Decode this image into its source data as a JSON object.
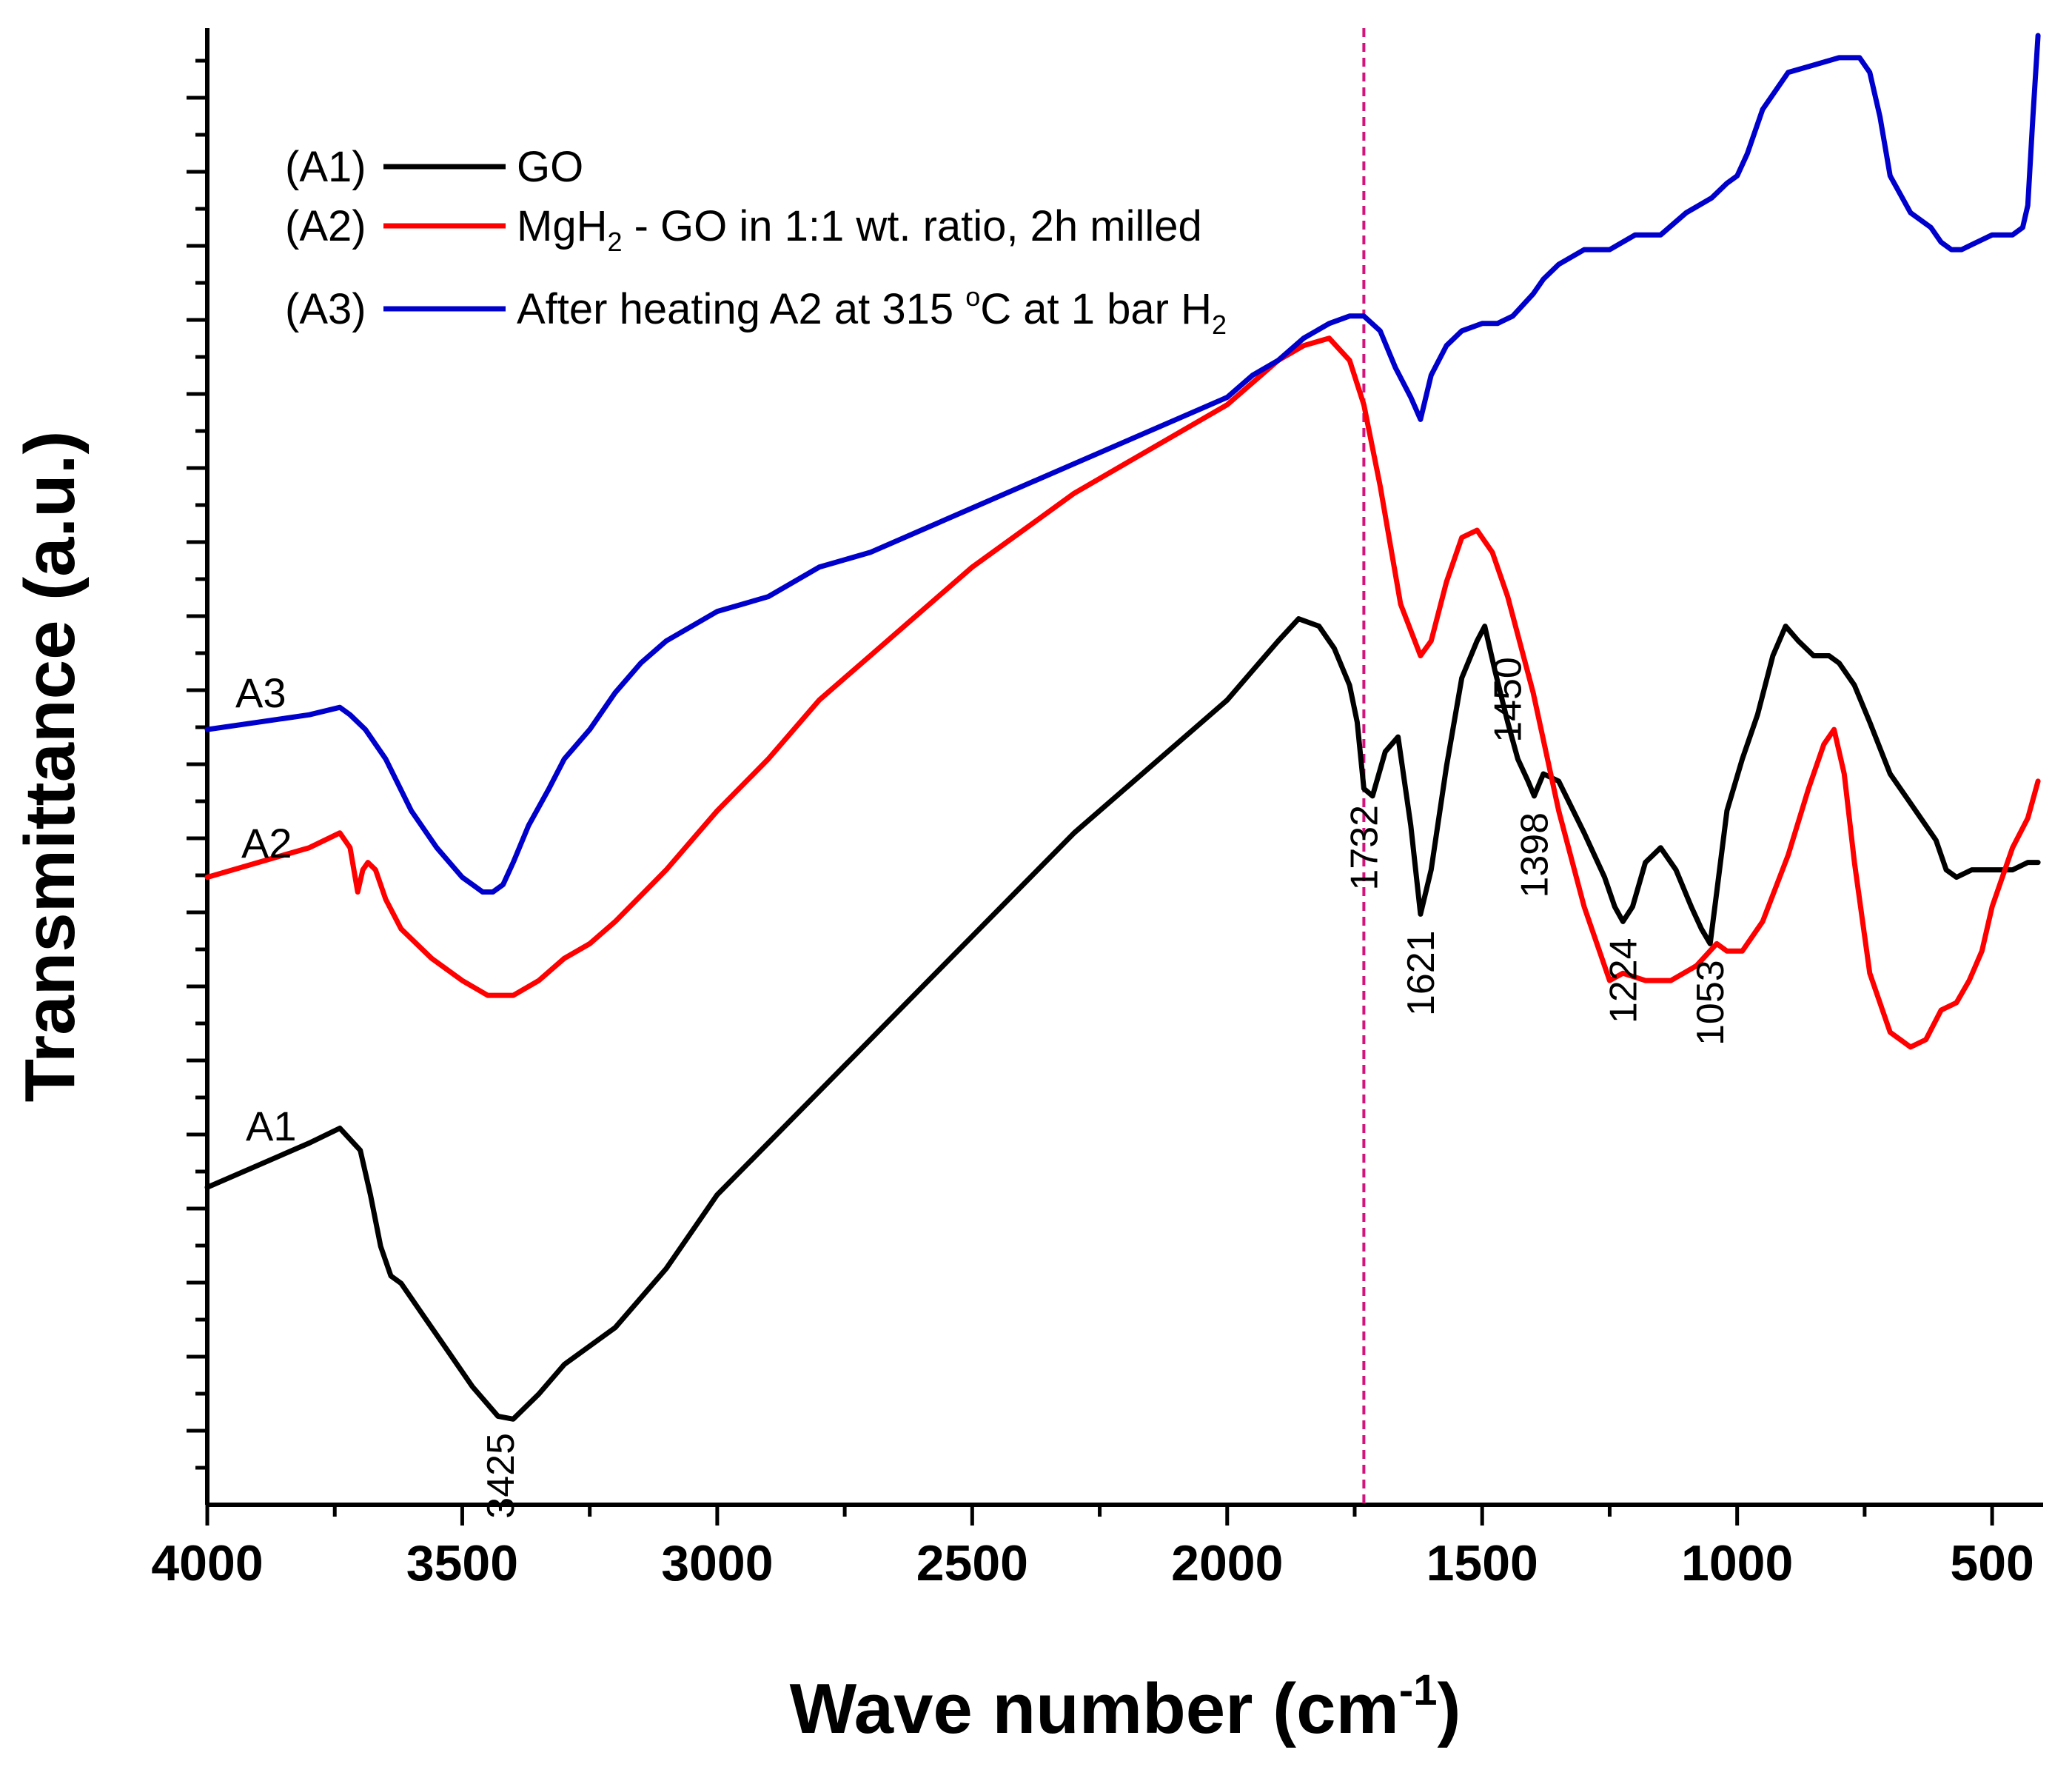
{
  "chart_data": {
    "type": "line",
    "title": "",
    "xlabel": "Wave number (cm",
    "xlabel_sup": "-1",
    "xlabel_end": ")",
    "ylabel": "Transmittance (a.u.)",
    "xlim": [
      4000,
      400
    ],
    "ylim": [
      0,
      10
    ],
    "x_ticks": [
      4000,
      3500,
      3000,
      2500,
      2000,
      1500,
      1000,
      500
    ],
    "y_ticks_hidden": true,
    "reference_line_x": 1732,
    "colors": {
      "A1": "#000000",
      "A2": "#ff0000",
      "A3": "#0000cc",
      "reference": "#d4147c"
    },
    "legend": [
      {
        "tag": "(A1)",
        "text": "GO"
      },
      {
        "tag": "(A2)",
        "text_parts": [
          "MgH",
          "2",
          " - GO in 1:1 wt. ratio, 2h milled"
        ]
      },
      {
        "tag": "(A3)",
        "text_parts": [
          "After heating A2 at 315 ",
          "o",
          "C at 1 bar H",
          "2"
        ]
      }
    ],
    "series": [
      {
        "name": "A1",
        "label": "A1",
        "x": [
          4000,
          3900,
          3800,
          3740,
          3700,
          3680,
          3660,
          3640,
          3620,
          3580,
          3530,
          3480,
          3430,
          3400,
          3350,
          3300,
          3200,
          3100,
          3000,
          2900,
          2800,
          2700,
          2600,
          2500,
          2400,
          2300,
          2200,
          2100,
          2000,
          1950,
          1900,
          1860,
          1820,
          1790,
          1760,
          1745,
          1732,
          1715,
          1690,
          1665,
          1640,
          1621,
          1600,
          1570,
          1540,
          1510,
          1495,
          1475,
          1450,
          1430,
          1410,
          1398,
          1380,
          1350,
          1300,
          1260,
          1240,
          1224,
          1205,
          1180,
          1150,
          1120,
          1090,
          1070,
          1053,
          1040,
          1020,
          990,
          960,
          930,
          905,
          880,
          850,
          820,
          800,
          770,
          740,
          700,
          660,
          630,
          610,
          590,
          570,
          540,
          500,
          460,
          430,
          410
        ],
        "y": [
          2.15,
          2.3,
          2.45,
          2.55,
          2.4,
          2.1,
          1.75,
          1.55,
          1.5,
          1.3,
          1.05,
          0.8,
          0.6,
          0.58,
          0.75,
          0.95,
          1.2,
          1.6,
          2.1,
          2.45,
          2.8,
          3.15,
          3.5,
          3.85,
          4.2,
          4.55,
          4.85,
          5.15,
          5.45,
          5.65,
          5.85,
          6.0,
          5.95,
          5.8,
          5.55,
          5.3,
          4.85,
          4.8,
          5.1,
          5.2,
          4.6,
          4.0,
          4.3,
          5.0,
          5.6,
          5.85,
          5.95,
          5.65,
          5.3,
          5.05,
          4.9,
          4.8,
          4.95,
          4.9,
          4.55,
          4.25,
          4.05,
          3.95,
          4.05,
          4.35,
          4.45,
          4.3,
          4.05,
          3.9,
          3.8,
          4.15,
          4.7,
          5.05,
          5.35,
          5.75,
          5.95,
          5.85,
          5.75,
          5.75,
          5.7,
          5.55,
          5.3,
          4.95,
          4.75,
          4.6,
          4.5,
          4.3,
          4.25,
          4.3,
          4.3,
          4.3,
          4.35,
          4.35
        ]
      },
      {
        "name": "A2",
        "label": "A2",
        "x": [
          4000,
          3900,
          3800,
          3740,
          3720,
          3705,
          3695,
          3685,
          3670,
          3650,
          3620,
          3560,
          3500,
          3450,
          3400,
          3350,
          3300,
          3250,
          3200,
          3100,
          3000,
          2900,
          2800,
          2700,
          2600,
          2500,
          2400,
          2300,
          2200,
          2100,
          2000,
          1950,
          1900,
          1850,
          1800,
          1760,
          1732,
          1700,
          1660,
          1621,
          1600,
          1570,
          1540,
          1510,
          1480,
          1450,
          1400,
          1350,
          1300,
          1250,
          1224,
          1180,
          1130,
          1080,
          1040,
          1020,
          990,
          950,
          900,
          860,
          830,
          810,
          790,
          770,
          740,
          700,
          660,
          630,
          600,
          570,
          545,
          520,
          500,
          460,
          430,
          410
        ],
        "y": [
          4.25,
          4.35,
          4.45,
          4.55,
          4.45,
          4.15,
          4.3,
          4.35,
          4.3,
          4.1,
          3.9,
          3.7,
          3.55,
          3.45,
          3.45,
          3.55,
          3.7,
          3.8,
          3.95,
          4.3,
          4.7,
          5.05,
          5.45,
          5.75,
          6.05,
          6.35,
          6.6,
          6.85,
          7.05,
          7.25,
          7.45,
          7.6,
          7.75,
          7.85,
          7.9,
          7.75,
          7.45,
          6.9,
          6.1,
          5.75,
          5.85,
          6.25,
          6.55,
          6.6,
          6.45,
          6.15,
          5.5,
          4.7,
          4.05,
          3.55,
          3.6,
          3.55,
          3.55,
          3.65,
          3.8,
          3.75,
          3.75,
          3.95,
          4.4,
          4.85,
          5.15,
          5.25,
          4.95,
          4.35,
          3.6,
          3.2,
          3.1,
          3.15,
          3.35,
          3.4,
          3.55,
          3.75,
          4.05,
          4.45,
          4.65,
          4.9
        ]
      },
      {
        "name": "A3",
        "label": "A3",
        "x": [
          4000,
          3900,
          3800,
          3740,
          3720,
          3690,
          3650,
          3600,
          3550,
          3500,
          3460,
          3440,
          3420,
          3400,
          3370,
          3330,
          3300,
          3250,
          3200,
          3150,
          3100,
          3050,
          3000,
          2950,
          2900,
          2800,
          2700,
          2600,
          2500,
          2400,
          2300,
          2200,
          2100,
          2000,
          1950,
          1900,
          1850,
          1800,
          1760,
          1732,
          1700,
          1670,
          1640,
          1621,
          1600,
          1570,
          1540,
          1500,
          1470,
          1440,
          1400,
          1380,
          1350,
          1300,
          1250,
          1200,
          1150,
          1100,
          1050,
          1020,
          1000,
          980,
          950,
          900,
          850,
          800,
          780,
          760,
          740,
          720,
          700,
          660,
          620,
          600,
          580,
          560,
          530,
          500,
          460,
          440,
          430,
          420,
          410
        ],
        "y": [
          5.25,
          5.3,
          5.35,
          5.4,
          5.35,
          5.25,
          5.05,
          4.7,
          4.45,
          4.25,
          4.15,
          4.15,
          4.2,
          4.35,
          4.6,
          4.85,
          5.05,
          5.25,
          5.5,
          5.7,
          5.85,
          5.95,
          6.05,
          6.1,
          6.15,
          6.35,
          6.45,
          6.6,
          6.75,
          6.9,
          7.05,
          7.2,
          7.35,
          7.5,
          7.65,
          7.75,
          7.9,
          8.0,
          8.05,
          8.05,
          7.95,
          7.7,
          7.5,
          7.35,
          7.65,
          7.85,
          7.95,
          8.0,
          8.0,
          8.05,
          8.2,
          8.3,
          8.4,
          8.5,
          8.5,
          8.6,
          8.6,
          8.75,
          8.85,
          8.95,
          9.0,
          9.15,
          9.45,
          9.7,
          9.75,
          9.8,
          9.8,
          9.8,
          9.7,
          9.4,
          9.0,
          8.75,
          8.65,
          8.55,
          8.5,
          8.5,
          8.55,
          8.6,
          8.6,
          8.65,
          8.8,
          9.4,
          9.95
        ]
      }
    ],
    "annotations": [
      {
        "text": "3425",
        "x": 3425
      },
      {
        "text": "1732",
        "x": 1732
      },
      {
        "text": "1621",
        "x": 1621
      },
      {
        "text": "1450",
        "x": 1450
      },
      {
        "text": "1398",
        "x": 1398
      },
      {
        "text": "1224",
        "x": 1224
      },
      {
        "text": "1053",
        "x": 1053
      }
    ]
  }
}
